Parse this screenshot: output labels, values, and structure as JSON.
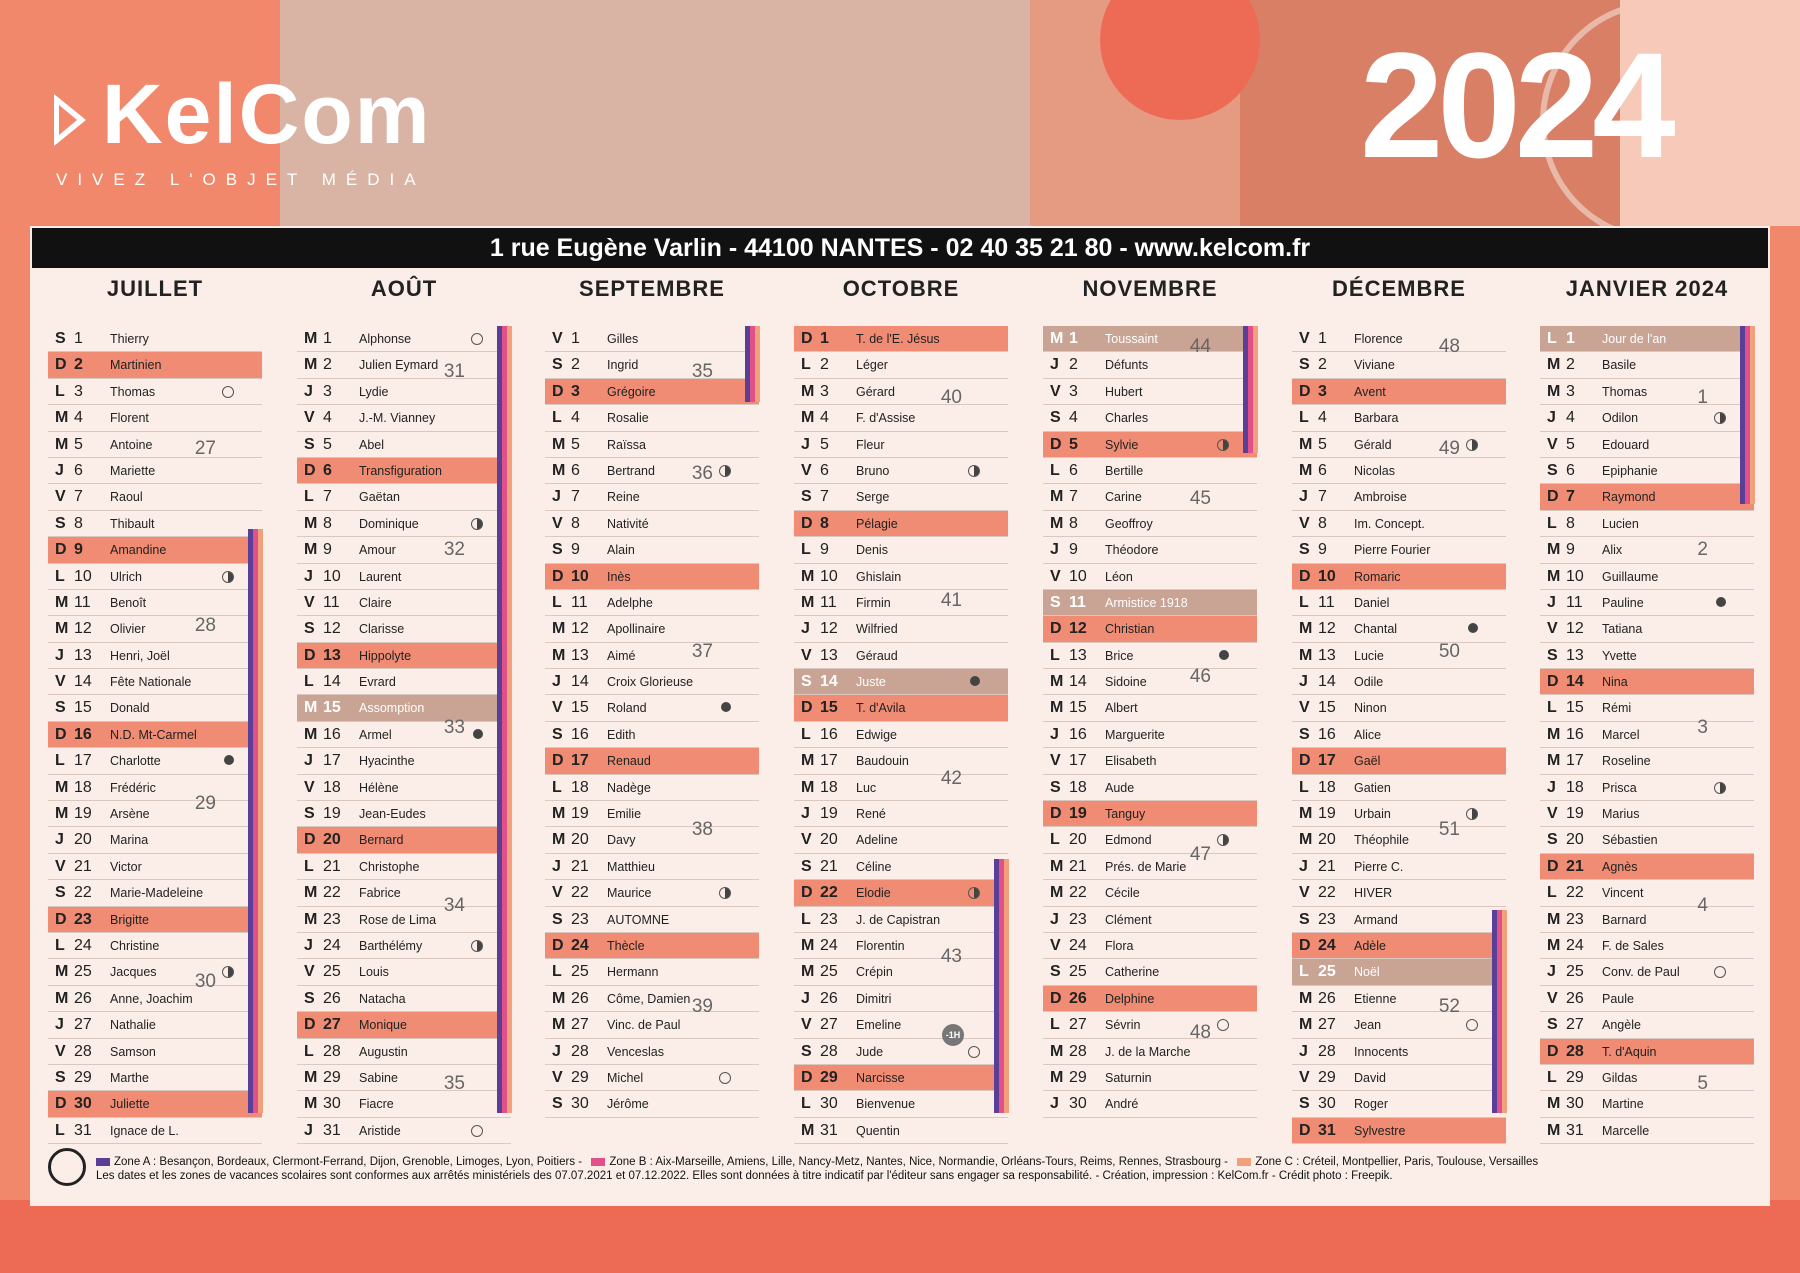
{
  "brand": {
    "name": "KelCom",
    "tagline": "VIVEZ L'OBJET MÉDIA"
  },
  "year": "2024",
  "address": "1 rue Eugène Varlin - 44100 NANTES - 02 40 35 21 80 - www.kelcom.fr",
  "colors": {
    "zoneA": "#5a3f96",
    "zoneB": "#e2508a",
    "zoneC": "#f0a07a",
    "sunday": "#ef8c73",
    "holiday": "#c9a394"
  },
  "months": [
    {
      "name": "JUILLET",
      "days": [
        [
          "S",
          "1",
          "Thierry"
        ],
        [
          "D",
          "2",
          "Martinien"
        ],
        [
          "L",
          "3",
          "Thomas"
        ],
        [
          "M",
          "4",
          "Florent"
        ],
        [
          "M",
          "5",
          "Antoine"
        ],
        [
          "J",
          "6",
          "Mariette"
        ],
        [
          "V",
          "7",
          "Raoul"
        ],
        [
          "S",
          "8",
          "Thibault"
        ],
        [
          "D",
          "9",
          "Amandine"
        ],
        [
          "L",
          "10",
          "Ulrich"
        ],
        [
          "M",
          "11",
          "Benoît"
        ],
        [
          "M",
          "12",
          "Olivier"
        ],
        [
          "J",
          "13",
          "Henri, Joël"
        ],
        [
          "V",
          "14",
          "Fête Nationale"
        ],
        [
          "S",
          "15",
          "Donald"
        ],
        [
          "D",
          "16",
          "N.D. Mt-Carmel"
        ],
        [
          "L",
          "17",
          "Charlotte"
        ],
        [
          "M",
          "18",
          "Frédéric"
        ],
        [
          "M",
          "19",
          "Arsène"
        ],
        [
          "J",
          "20",
          "Marina"
        ],
        [
          "V",
          "21",
          "Victor"
        ],
        [
          "S",
          "22",
          "Marie-Madeleine"
        ],
        [
          "D",
          "23",
          "Brigitte"
        ],
        [
          "L",
          "24",
          "Christine"
        ],
        [
          "M",
          "25",
          "Jacques"
        ],
        [
          "M",
          "26",
          "Anne, Joachim"
        ],
        [
          "J",
          "27",
          "Nathalie"
        ],
        [
          "V",
          "28",
          "Samson"
        ],
        [
          "S",
          "29",
          "Marthe"
        ],
        [
          "D",
          "30",
          "Juliette"
        ],
        [
          "L",
          "31",
          "Ignace de L."
        ]
      ],
      "weeks": [
        "27",
        "28",
        "29",
        "30"
      ]
    },
    {
      "name": "AOÛT",
      "days": [
        [
          "M",
          "1",
          "Alphonse"
        ],
        [
          "M",
          "2",
          "Julien Eymard"
        ],
        [
          "J",
          "3",
          "Lydie"
        ],
        [
          "V",
          "4",
          "J.-M. Vianney"
        ],
        [
          "S",
          "5",
          "Abel"
        ],
        [
          "D",
          "6",
          "Transfiguration"
        ],
        [
          "L",
          "7",
          "Gaëtan"
        ],
        [
          "M",
          "8",
          "Dominique"
        ],
        [
          "M",
          "9",
          "Amour"
        ],
        [
          "J",
          "10",
          "Laurent"
        ],
        [
          "V",
          "11",
          "Claire"
        ],
        [
          "S",
          "12",
          "Clarisse"
        ],
        [
          "D",
          "13",
          "Hippolyte"
        ],
        [
          "L",
          "14",
          "Evrard"
        ],
        [
          "M",
          "15",
          "Assomption"
        ],
        [
          "M",
          "16",
          "Armel"
        ],
        [
          "J",
          "17",
          "Hyacinthe"
        ],
        [
          "V",
          "18",
          "Hélène"
        ],
        [
          "S",
          "19",
          "Jean-Eudes"
        ],
        [
          "D",
          "20",
          "Bernard"
        ],
        [
          "L",
          "21",
          "Christophe"
        ],
        [
          "M",
          "22",
          "Fabrice"
        ],
        [
          "M",
          "23",
          "Rose de Lima"
        ],
        [
          "J",
          "24",
          "Barthélémy"
        ],
        [
          "V",
          "25",
          "Louis"
        ],
        [
          "S",
          "26",
          "Natacha"
        ],
        [
          "D",
          "27",
          "Monique"
        ],
        [
          "L",
          "28",
          "Augustin"
        ],
        [
          "M",
          "29",
          "Sabine"
        ],
        [
          "M",
          "30",
          "Fiacre"
        ],
        [
          "J",
          "31",
          "Aristide"
        ]
      ],
      "weeks": [
        "31",
        "32",
        "33",
        "34",
        "35"
      ]
    },
    {
      "name": "SEPTEMBRE",
      "days": [
        [
          "V",
          "1",
          "Gilles"
        ],
        [
          "S",
          "2",
          "Ingrid"
        ],
        [
          "D",
          "3",
          "Grégoire"
        ],
        [
          "L",
          "4",
          "Rosalie"
        ],
        [
          "M",
          "5",
          "Raïssa"
        ],
        [
          "M",
          "6",
          "Bertrand"
        ],
        [
          "J",
          "7",
          "Reine"
        ],
        [
          "V",
          "8",
          "Nativité"
        ],
        [
          "S",
          "9",
          "Alain"
        ],
        [
          "D",
          "10",
          "Inès"
        ],
        [
          "L",
          "11",
          "Adelphe"
        ],
        [
          "M",
          "12",
          "Apollinaire"
        ],
        [
          "M",
          "13",
          "Aimé"
        ],
        [
          "J",
          "14",
          "Croix Glorieuse"
        ],
        [
          "V",
          "15",
          "Roland"
        ],
        [
          "S",
          "16",
          "Edith"
        ],
        [
          "D",
          "17",
          "Renaud"
        ],
        [
          "L",
          "18",
          "Nadège"
        ],
        [
          "M",
          "19",
          "Emilie"
        ],
        [
          "M",
          "20",
          "Davy"
        ],
        [
          "J",
          "21",
          "Matthieu"
        ],
        [
          "V",
          "22",
          "Maurice"
        ],
        [
          "S",
          "23",
          "AUTOMNE"
        ],
        [
          "D",
          "24",
          "Thècle"
        ],
        [
          "L",
          "25",
          "Hermann"
        ],
        [
          "M",
          "26",
          "Côme, Damien"
        ],
        [
          "M",
          "27",
          "Vinc. de Paul"
        ],
        [
          "J",
          "28",
          "Venceslas"
        ],
        [
          "V",
          "29",
          "Michel"
        ],
        [
          "S",
          "30",
          "Jérôme"
        ]
      ],
      "weeks": [
        "35",
        "36",
        "37",
        "38",
        "39"
      ]
    },
    {
      "name": "OCTOBRE",
      "days": [
        [
          "D",
          "1",
          "T. de l'E. Jésus"
        ],
        [
          "L",
          "2",
          "Léger"
        ],
        [
          "M",
          "3",
          "Gérard"
        ],
        [
          "M",
          "4",
          "F. d'Assise"
        ],
        [
          "J",
          "5",
          "Fleur"
        ],
        [
          "V",
          "6",
          "Bruno"
        ],
        [
          "S",
          "7",
          "Serge"
        ],
        [
          "D",
          "8",
          "Pélagie"
        ],
        [
          "L",
          "9",
          "Denis"
        ],
        [
          "M",
          "10",
          "Ghislain"
        ],
        [
          "M",
          "11",
          "Firmin"
        ],
        [
          "J",
          "12",
          "Wilfried"
        ],
        [
          "V",
          "13",
          "Géraud"
        ],
        [
          "S",
          "14",
          "Juste"
        ],
        [
          "D",
          "15",
          "T. d'Avila"
        ],
        [
          "L",
          "16",
          "Edwige"
        ],
        [
          "M",
          "17",
          "Baudouin"
        ],
        [
          "M",
          "18",
          "Luc"
        ],
        [
          "J",
          "19",
          "René"
        ],
        [
          "V",
          "20",
          "Adeline"
        ],
        [
          "S",
          "21",
          "Céline"
        ],
        [
          "D",
          "22",
          "Elodie"
        ],
        [
          "L",
          "23",
          "J. de Capistran"
        ],
        [
          "M",
          "24",
          "Florentin"
        ],
        [
          "M",
          "25",
          "Crépin"
        ],
        [
          "J",
          "26",
          "Dimitri"
        ],
        [
          "V",
          "27",
          "Emeline"
        ],
        [
          "S",
          "28",
          "Jude"
        ],
        [
          "D",
          "29",
          "Narcisse"
        ],
        [
          "L",
          "30",
          "Bienvenue"
        ],
        [
          "M",
          "31",
          "Quentin"
        ]
      ],
      "weeks": [
        "40",
        "41",
        "42",
        "43"
      ],
      "badge": "-1H"
    },
    {
      "name": "NOVEMBRE",
      "days": [
        [
          "M",
          "1",
          "Toussaint"
        ],
        [
          "J",
          "2",
          "Défunts"
        ],
        [
          "V",
          "3",
          "Hubert"
        ],
        [
          "S",
          "4",
          "Charles"
        ],
        [
          "D",
          "5",
          "Sylvie"
        ],
        [
          "L",
          "6",
          "Bertille"
        ],
        [
          "M",
          "7",
          "Carine"
        ],
        [
          "M",
          "8",
          "Geoffroy"
        ],
        [
          "J",
          "9",
          "Théodore"
        ],
        [
          "V",
          "10",
          "Léon"
        ],
        [
          "S",
          "11",
          "Armistice 1918"
        ],
        [
          "D",
          "12",
          "Christian"
        ],
        [
          "L",
          "13",
          "Brice"
        ],
        [
          "M",
          "14",
          "Sidoine"
        ],
        [
          "M",
          "15",
          "Albert"
        ],
        [
          "J",
          "16",
          "Marguerite"
        ],
        [
          "V",
          "17",
          "Elisabeth"
        ],
        [
          "S",
          "18",
          "Aude"
        ],
        [
          "D",
          "19",
          "Tanguy"
        ],
        [
          "L",
          "20",
          "Edmond"
        ],
        [
          "M",
          "21",
          "Prés. de Marie"
        ],
        [
          "M",
          "22",
          "Cécile"
        ],
        [
          "J",
          "23",
          "Clément"
        ],
        [
          "V",
          "24",
          "Flora"
        ],
        [
          "S",
          "25",
          "Catherine"
        ],
        [
          "D",
          "26",
          "Delphine"
        ],
        [
          "L",
          "27",
          "Sévrin"
        ],
        [
          "M",
          "28",
          "J. de la Marche"
        ],
        [
          "M",
          "29",
          "Saturnin"
        ],
        [
          "J",
          "30",
          "André"
        ]
      ],
      "weeks": [
        "44",
        "45",
        "46",
        "47",
        "48"
      ]
    },
    {
      "name": "DÉCEMBRE",
      "days": [
        [
          "V",
          "1",
          "Florence"
        ],
        [
          "S",
          "2",
          "Viviane"
        ],
        [
          "D",
          "3",
          "Avent"
        ],
        [
          "L",
          "4",
          "Barbara"
        ],
        [
          "M",
          "5",
          "Gérald"
        ],
        [
          "M",
          "6",
          "Nicolas"
        ],
        [
          "J",
          "7",
          "Ambroise"
        ],
        [
          "V",
          "8",
          "Im. Concept."
        ],
        [
          "S",
          "9",
          "Pierre Fourier"
        ],
        [
          "D",
          "10",
          "Romaric"
        ],
        [
          "L",
          "11",
          "Daniel"
        ],
        [
          "M",
          "12",
          "Chantal"
        ],
        [
          "M",
          "13",
          "Lucie"
        ],
        [
          "J",
          "14",
          "Odile"
        ],
        [
          "V",
          "15",
          "Ninon"
        ],
        [
          "S",
          "16",
          "Alice"
        ],
        [
          "D",
          "17",
          "Gaël"
        ],
        [
          "L",
          "18",
          "Gatien"
        ],
        [
          "M",
          "19",
          "Urbain"
        ],
        [
          "M",
          "20",
          "Théophile"
        ],
        [
          "J",
          "21",
          "Pierre C."
        ],
        [
          "V",
          "22",
          "HIVER"
        ],
        [
          "S",
          "23",
          "Armand"
        ],
        [
          "D",
          "24",
          "Adèle"
        ],
        [
          "L",
          "25",
          "Noël"
        ],
        [
          "M",
          "26",
          "Etienne"
        ],
        [
          "M",
          "27",
          "Jean"
        ],
        [
          "J",
          "28",
          "Innocents"
        ],
        [
          "V",
          "29",
          "David"
        ],
        [
          "S",
          "30",
          "Roger"
        ],
        [
          "D",
          "31",
          "Sylvestre"
        ]
      ],
      "weeks": [
        "48",
        "49",
        "50",
        "51",
        "52"
      ]
    },
    {
      "name": "JANVIER 2024",
      "days": [
        [
          "L",
          "1",
          "Jour de l'an"
        ],
        [
          "M",
          "2",
          "Basile"
        ],
        [
          "M",
          "3",
          "Thomas"
        ],
        [
          "J",
          "4",
          "Odilon"
        ],
        [
          "V",
          "5",
          "Edouard"
        ],
        [
          "S",
          "6",
          "Epiphanie"
        ],
        [
          "D",
          "7",
          "Raymond"
        ],
        [
          "L",
          "8",
          "Lucien"
        ],
        [
          "M",
          "9",
          "Alix"
        ],
        [
          "M",
          "10",
          "Guillaume"
        ],
        [
          "J",
          "11",
          "Pauline"
        ],
        [
          "V",
          "12",
          "Tatiana"
        ],
        [
          "S",
          "13",
          "Yvette"
        ],
        [
          "D",
          "14",
          "Nina"
        ],
        [
          "L",
          "15",
          "Rémi"
        ],
        [
          "M",
          "16",
          "Marcel"
        ],
        [
          "M",
          "17",
          "Roseline"
        ],
        [
          "J",
          "18",
          "Prisca"
        ],
        [
          "V",
          "19",
          "Marius"
        ],
        [
          "S",
          "20",
          "Sébastien"
        ],
        [
          "D",
          "21",
          "Agnès"
        ],
        [
          "L",
          "22",
          "Vincent"
        ],
        [
          "M",
          "23",
          "Barnard"
        ],
        [
          "M",
          "24",
          "F. de Sales"
        ],
        [
          "J",
          "25",
          "Conv. de Paul"
        ],
        [
          "V",
          "26",
          "Paule"
        ],
        [
          "S",
          "27",
          "Angèle"
        ],
        [
          "D",
          "28",
          "T. d'Aquin"
        ],
        [
          "L",
          "29",
          "Gildas"
        ],
        [
          "M",
          "30",
          "Martine"
        ],
        [
          "M",
          "31",
          "Marcelle"
        ]
      ],
      "weeks": [
        "1",
        "2",
        "3",
        "4",
        "5"
      ]
    }
  ],
  "footer": {
    "zoneA": "Zone A : Besançon, Bordeaux, Clermont-Ferrand, Dijon, Grenoble, Limoges, Lyon, Poitiers  -",
    "zoneB": "Zone B : Aix-Marseille, Amiens, Lille, Nancy-Metz, Nantes, Nice, Normandie, Orléans-Tours, Reims, Rennes, Strasbourg  -",
    "zoneC": "Zone C : Créteil, Montpellier, Paris, Toulouse, Versailles",
    "legal": "Les dates et les zones de vacances scolaires sont conformes aux arrêtés ministériels des 07.07.2021 et 07.12.2022. Elles sont données à titre indicatif par l'éditeur sans engager sa responsabilité. - Création, impression : KelCom.fr - Crédit photo : Freepik."
  }
}
